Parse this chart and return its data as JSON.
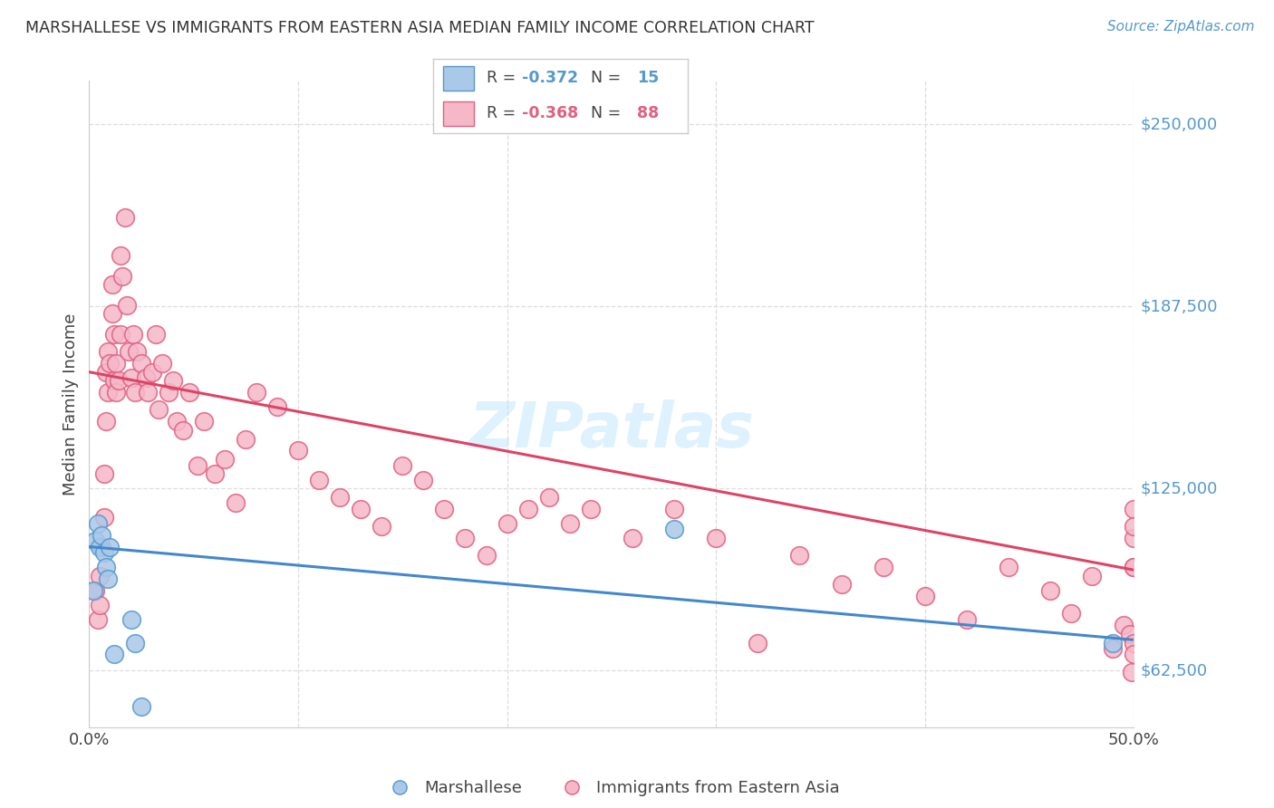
{
  "title": "MARSHALLESE VS IMMIGRANTS FROM EASTERN ASIA MEDIAN FAMILY INCOME CORRELATION CHART",
  "source": "Source: ZipAtlas.com",
  "ylabel": "Median Family Income",
  "xlim": [
    0.0,
    0.5
  ],
  "ylim": [
    43000,
    265000
  ],
  "yticks": [
    62500,
    125000,
    187500,
    250000
  ],
  "ytick_labels": [
    "$62,500",
    "$125,000",
    "$187,500",
    "$250,000"
  ],
  "xtick_positions": [
    0.0,
    0.1,
    0.2,
    0.3,
    0.4,
    0.5
  ],
  "xtick_labels": [
    "0.0%",
    "",
    "",
    "",
    "",
    "50.0%"
  ],
  "background_color": "#ffffff",
  "grid_color": "#dddddd",
  "blue_fill": "#aac8e8",
  "blue_edge": "#5599cc",
  "pink_fill": "#f5b8c8",
  "pink_edge": "#e06080",
  "blue_line": "#4488cc",
  "pink_line": "#dd4466",
  "legend_r_blue": "-0.372",
  "legend_n_blue": "15",
  "legend_r_pink": "-0.368",
  "legend_n_pink": "88",
  "marshallese_x": [
    0.002,
    0.003,
    0.004,
    0.005,
    0.006,
    0.007,
    0.008,
    0.009,
    0.01,
    0.012,
    0.02,
    0.022,
    0.025,
    0.28,
    0.49
  ],
  "marshallese_y": [
    90000,
    107000,
    113000,
    105000,
    109000,
    103000,
    98000,
    94000,
    105000,
    68000,
    80000,
    72000,
    50000,
    111000,
    72000
  ],
  "eastern_asia_x": [
    0.003,
    0.004,
    0.005,
    0.005,
    0.006,
    0.007,
    0.007,
    0.008,
    0.008,
    0.009,
    0.009,
    0.01,
    0.011,
    0.011,
    0.012,
    0.012,
    0.013,
    0.013,
    0.014,
    0.015,
    0.015,
    0.016,
    0.017,
    0.018,
    0.019,
    0.02,
    0.021,
    0.022,
    0.023,
    0.025,
    0.027,
    0.028,
    0.03,
    0.032,
    0.033,
    0.035,
    0.038,
    0.04,
    0.042,
    0.045,
    0.048,
    0.052,
    0.055,
    0.06,
    0.065,
    0.07,
    0.075,
    0.08,
    0.09,
    0.1,
    0.11,
    0.12,
    0.13,
    0.14,
    0.15,
    0.16,
    0.17,
    0.18,
    0.19,
    0.2,
    0.21,
    0.22,
    0.23,
    0.24,
    0.26,
    0.28,
    0.3,
    0.32,
    0.34,
    0.36,
    0.38,
    0.4,
    0.42,
    0.44,
    0.46,
    0.47,
    0.48,
    0.49,
    0.495,
    0.498,
    0.499,
    0.5,
    0.5,
    0.5,
    0.5,
    0.5,
    0.5,
    0.5
  ],
  "eastern_asia_y": [
    90000,
    80000,
    95000,
    85000,
    105000,
    115000,
    130000,
    148000,
    165000,
    158000,
    172000,
    168000,
    185000,
    195000,
    178000,
    162000,
    168000,
    158000,
    162000,
    178000,
    205000,
    198000,
    218000,
    188000,
    172000,
    163000,
    178000,
    158000,
    172000,
    168000,
    163000,
    158000,
    165000,
    178000,
    152000,
    168000,
    158000,
    162000,
    148000,
    145000,
    158000,
    133000,
    148000,
    130000,
    135000,
    120000,
    142000,
    158000,
    153000,
    138000,
    128000,
    122000,
    118000,
    112000,
    133000,
    128000,
    118000,
    108000,
    102000,
    113000,
    118000,
    122000,
    113000,
    118000,
    108000,
    118000,
    108000,
    72000,
    102000,
    92000,
    98000,
    88000,
    80000,
    98000,
    90000,
    82000,
    95000,
    70000,
    78000,
    75000,
    62000,
    98000,
    108000,
    118000,
    112000,
    98000,
    72000,
    68000
  ]
}
